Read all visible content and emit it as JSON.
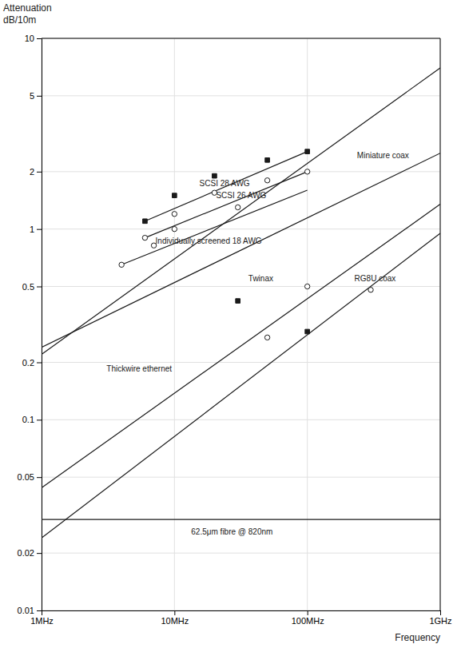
{
  "chart_data": {
    "type": "line",
    "log": true,
    "grid": true,
    "color": "#1a1a1a",
    "xlabel": "Frequency",
    "ylabel": [
      "Attenuation",
      "dB/10m"
    ],
    "xlim": [
      1000000,
      1000000000
    ],
    "ylim": [
      0.01,
      10
    ],
    "xticks": [
      {
        "value": 1000000,
        "label": "1MHz"
      },
      {
        "value": 10000000,
        "label": "10MHz"
      },
      {
        "value": 100000000,
        "label": "100MHz"
      },
      {
        "value": 1000000000,
        "label": "1GHz"
      }
    ],
    "yticks": [
      0.01,
      0.02,
      0.05,
      0.1,
      0.2,
      0.5,
      1,
      2,
      5,
      10
    ],
    "series": [
      {
        "name": "Miniature coax",
        "x": [
          1000000,
          1000000000
        ],
        "values": [
          0.22,
          7.0
        ],
        "label_x": 230000000,
        "label_y": 2.3,
        "marker": "none"
      },
      {
        "name": "SCSI 28 AWG",
        "x": [
          6000000,
          100000000
        ],
        "values": [
          1.1,
          2.55
        ],
        "label_x": 15000000,
        "label_y": 1.65,
        "marker": "filled-square",
        "marker_x": [
          6000000,
          10000000,
          20000000,
          50000000,
          100000000
        ],
        "marker_values": [
          1.1,
          1.5,
          1.9,
          2.3,
          2.55
        ]
      },
      {
        "name": "SCSI 26 AWG",
        "x": [
          6000000,
          100000000
        ],
        "values": [
          0.9,
          2.0
        ],
        "label_x": 20000000,
        "label_y": 1.42,
        "marker": "open-circle",
        "marker_x": [
          6000000,
          10000000,
          20000000,
          50000000,
          100000000
        ],
        "marker_values": [
          0.9,
          1.2,
          1.55,
          1.8,
          2.0
        ]
      },
      {
        "name": "Individually screened 18 AWG",
        "x": [
          4000000,
          100000000
        ],
        "values": [
          0.65,
          1.6
        ],
        "label_x": 7000000,
        "label_y": 0.82,
        "marker": "open-circle",
        "marker_x": [
          4000000,
          7000000,
          10000000,
          30000000
        ],
        "marker_values": [
          0.65,
          0.82,
          1.0,
          1.3
        ]
      },
      {
        "name": "Twinax",
        "x": [
          1000000,
          1000000000
        ],
        "values": [
          0.044,
          1.35
        ],
        "label_x": 35000000,
        "label_y": 0.52,
        "marker": "filled-square",
        "marker_x": [
          30000000,
          100000000
        ],
        "marker_values": [
          0.42,
          0.29
        ]
      },
      {
        "name": "RG8U coax",
        "x": [
          1000000,
          1000000000
        ],
        "values": [
          0.024,
          0.95
        ],
        "label_x": 220000000,
        "label_y": 0.52,
        "marker": "open-circle",
        "marker_x": [
          50000000,
          100000000,
          300000000
        ],
        "marker_values": [
          0.27,
          0.5,
          0.48
        ]
      },
      {
        "name": "Thickwire ethernet",
        "x": [
          1000000,
          1000000000
        ],
        "values": [
          0.24,
          2.5
        ],
        "label_x": 3000000,
        "label_y": 0.175,
        "marker": "none"
      },
      {
        "name": "62.5μm fibre @ 820nm",
        "x": [
          1000000,
          1000000000
        ],
        "values": [
          0.03,
          0.03
        ],
        "label_x": 13000000,
        "label_y": 0.0245,
        "marker": "none"
      }
    ]
  }
}
